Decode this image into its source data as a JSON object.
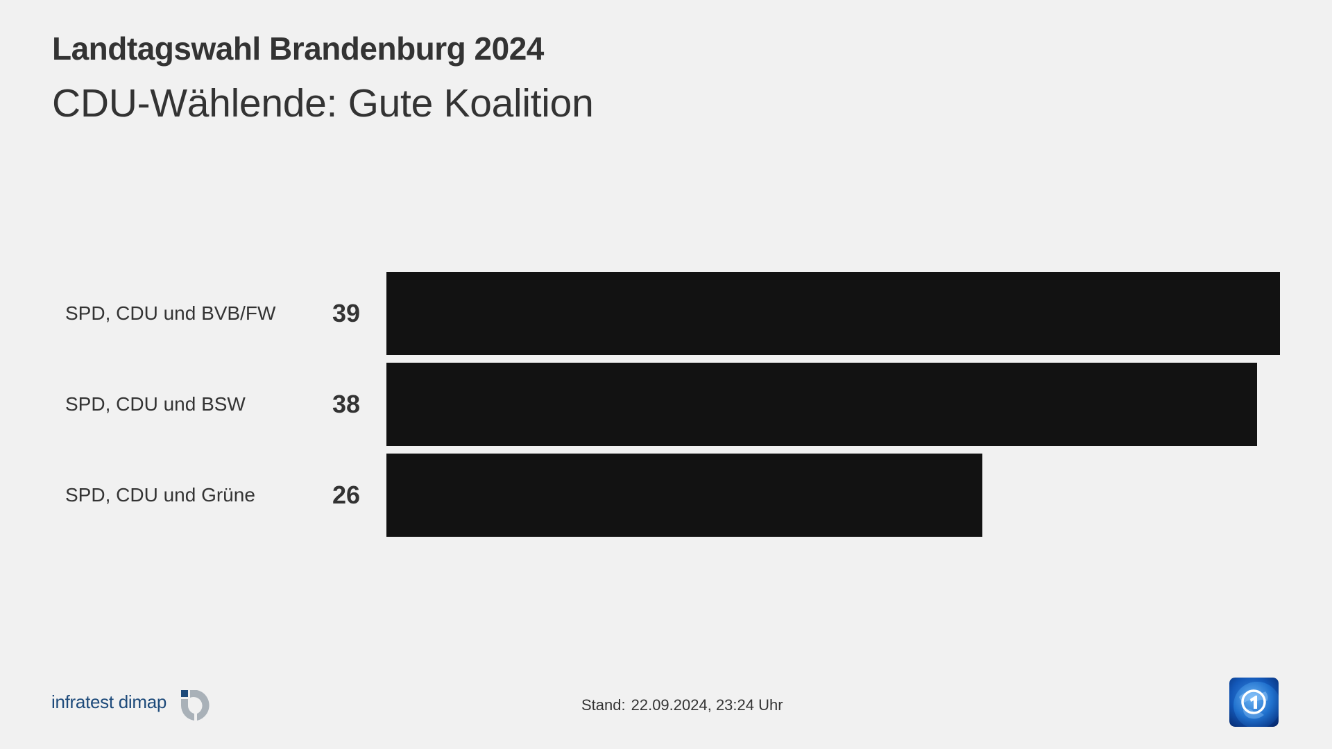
{
  "header": {
    "title": "Landtagswahl Brandenburg 2024",
    "subtitle": "CDU-Wählende: Gute Koalition"
  },
  "chart_data": {
    "type": "bar",
    "orientation": "horizontal",
    "title": "CDU-Wählende: Gute Koalition",
    "supertitle": "Landtagswahl Brandenburg 2024",
    "categories": [
      "SPD, CDU und BVB/FW",
      "SPD, CDU und BSW",
      "SPD, CDU und Grüne"
    ],
    "values": [
      39,
      38,
      26
    ],
    "xlabel": "",
    "ylabel": "",
    "xlim": [
      0,
      39
    ],
    "grid": false,
    "legend": "none",
    "bar_color": "#121212",
    "value_labels": [
      "39",
      "38",
      "26"
    ]
  },
  "rows": [
    {
      "label": "SPD, CDU und BVB/FW",
      "value": "39"
    },
    {
      "label": "SPD, CDU und BSW",
      "value": "38"
    },
    {
      "label": "SPD, CDU und Grüne",
      "value": "26"
    }
  ],
  "footer": {
    "source_brand": "infratest dimap",
    "source_logo_icon": "infratest-dimap-logo-icon",
    "stand_label": "Stand:",
    "stand_value": "22.09.2024, 23:24 Uhr",
    "broadcaster_logo_icon": "ard-das-erste-logo-icon"
  },
  "colors": {
    "background": "#f1f1f1",
    "text": "#333333",
    "bar": "#121212",
    "brand_blue": "#1d4a7a",
    "brand_gray": "#a9b1b8"
  }
}
